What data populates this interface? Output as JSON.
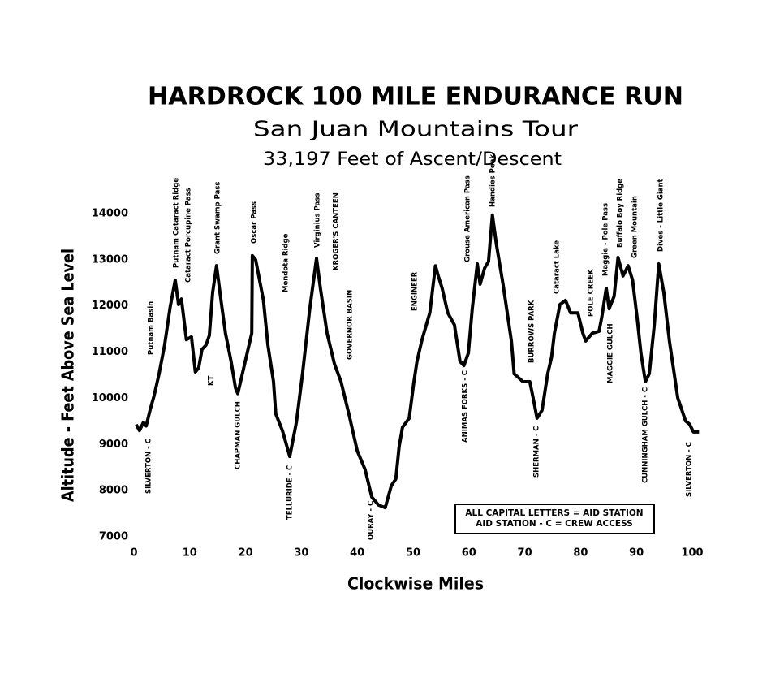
{
  "chart_data": {
    "type": "line",
    "title": "HARDROCK 100 MILE ENDURANCE RUN",
    "subtitles": [
      "San Juan Mountains Tour",
      "33,197 Feet of Ascent/Descent"
    ],
    "x_label": "Clockwise Miles",
    "y_label": "Altitude - Feet Above Sea Level",
    "color": "#000000",
    "x": [
      0.4,
      1,
      1.7,
      2.2,
      2.9,
      3.6,
      4.5,
      5.5,
      6.5,
      7.4,
      8,
      8.5,
      9.4,
      10.3,
      11,
      11.6,
      12.2,
      12.9,
      13.5,
      14.1,
      14.8,
      15.6,
      16.4,
      17.4,
      18.2,
      18.6,
      19.6,
      21.1,
      21.2,
      21.8,
      22.5,
      23.2,
      24,
      25,
      25.4,
      26.6,
      27.9,
      29.1,
      30.2,
      31.5,
      32.7,
      33.4,
      34.6,
      35.9,
      37.1,
      38.5,
      40,
      41.4,
      42.6,
      43.8,
      45,
      46.1,
      46.9,
      47.5,
      48.1,
      49.3,
      50.1,
      50.7,
      51.6,
      53,
      54,
      54.5,
      55.2,
      56.2,
      57.4,
      58.4,
      59.1,
      59.9,
      60.6,
      61.5,
      62,
      62.8,
      63.5,
      64.2,
      64.9,
      66.1,
      67.6,
      68.1,
      69.7,
      70.9,
      71.5,
      72.2,
      73.1,
      74.1,
      74.8,
      75.3,
      76.3,
      77.3,
      78.2,
      79.5,
      80.4,
      80.9,
      82.1,
      83.3,
      83.8,
      84.6,
      85.1,
      86,
      86.7,
      87.6,
      88.5,
      89.3,
      90.1,
      90.8,
      91.6,
      92.3,
      93.2,
      94,
      94.9,
      95.9,
      97.4,
      98.8,
      99.5,
      100.2,
      101.2
    ],
    "values": [
      9430,
      9300,
      9480,
      9400,
      9750,
      10050,
      10530,
      11150,
      11980,
      12560,
      12030,
      12150,
      11270,
      11330,
      10570,
      10660,
      11060,
      11150,
      11360,
      12290,
      12870,
      12120,
      11410,
      10800,
      10220,
      10100,
      10620,
      11410,
      13090,
      13000,
      12560,
      12120,
      11150,
      10360,
      9660,
      9300,
      8740,
      9480,
      10540,
      11940,
      13030,
      12380,
      11410,
      10750,
      10360,
      9660,
      8860,
      8460,
      7860,
      7690,
      7630,
      8110,
      8250,
      8950,
      9370,
      9570,
      10320,
      10800,
      11270,
      11850,
      12870,
      12650,
      12380,
      11850,
      11590,
      10800,
      10710,
      10980,
      11940,
      12910,
      12470,
      12820,
      12960,
      13970,
      13350,
      12470,
      11240,
      10530,
      10360,
      10360,
      10010,
      9570,
      9740,
      10530,
      10890,
      11410,
      12030,
      12120,
      11850,
      11850,
      11410,
      11240,
      11410,
      11450,
      11760,
      12380,
      11940,
      12210,
      13050,
      12650,
      12870,
      12560,
      11760,
      10980,
      10360,
      10530,
      11590,
      12910,
      12290,
      11240,
      10010,
      9510,
      9440,
      9270,
      9270
    ],
    "xlim": [
      0,
      100
    ],
    "xticks": [
      0,
      10,
      20,
      30,
      40,
      50,
      60,
      70,
      80,
      90,
      100
    ],
    "ylim": [
      7000,
      14000
    ],
    "yticks": [
      7000,
      8000,
      9000,
      10000,
      11000,
      12000,
      13000,
      14000
    ],
    "annotations": [
      "Putnam Basin",
      "Putnam Cataract Ridge",
      "Cataract Porcupine Pass",
      "Grant Swamp Pass",
      "KT",
      "Oscar Pass",
      "Mendota Ridge",
      "Virginius Pass",
      "KROGER'S CANTEEN",
      "GOVERNOR BASIN",
      "ENGINEER",
      "Grouse American Pass",
      "Handies Peak",
      "Cataract Lake",
      "BURROWS PARK",
      "POLE CREEK",
      "Maggie - Pole Pass",
      "Buffalo Boy Ridge",
      "Green Mountain",
      "Dives - Little Giant",
      "SILVERTON - C",
      "CHAPMAN GULCH",
      "TELLURIDE - C",
      "OURAY - C",
      "ANIMAS FORKS - C",
      "SHERMAN - C",
      "MAGGIE GULCH",
      "CUNNINGHAM GULCH - C",
      "SILVERTON - C"
    ],
    "notes": [
      "ALL CAPITAL LETTERS = AID STATION",
      "AID STATION - C = CREW ACCESS"
    ]
  }
}
